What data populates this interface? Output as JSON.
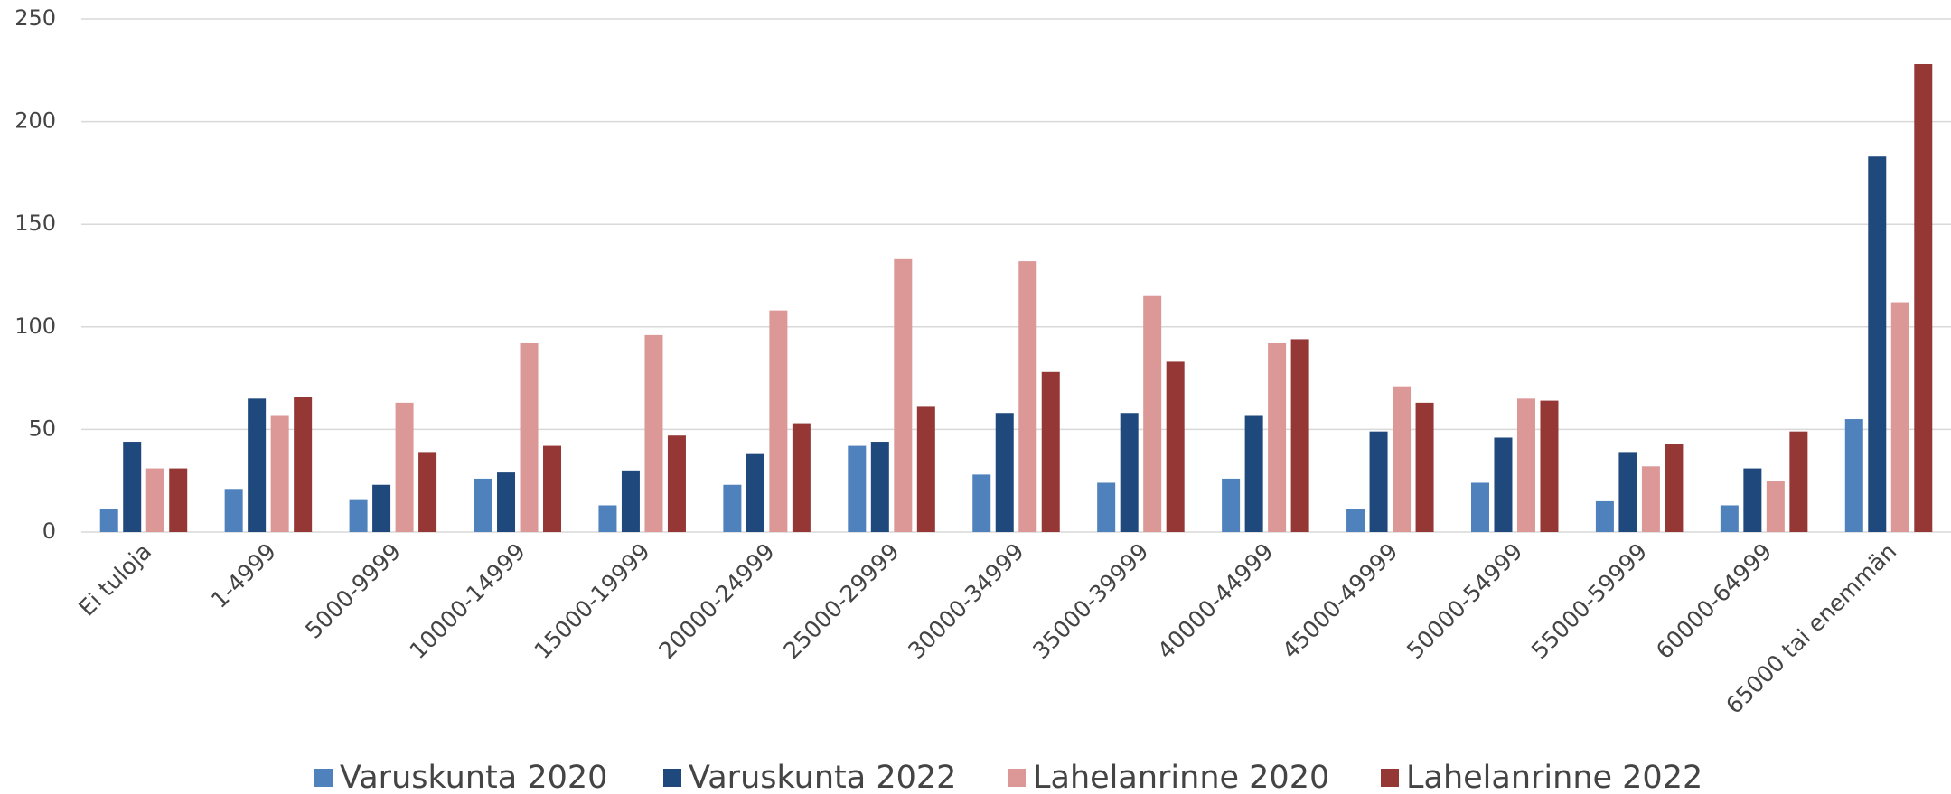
{
  "chart_data": {
    "type": "bar",
    "categories": [
      "Ei tuloja",
      "1-4999",
      "5000-9999",
      "10000-14999",
      "15000-19999",
      "20000-24999",
      "25000-29999",
      "30000-34999",
      "35000-39999",
      "40000-44999",
      "45000-49999",
      "50000-54999",
      "55000-59999",
      "60000-64999",
      "65000 tai enemmän"
    ],
    "series": [
      {
        "name": "Varuskunta 2020",
        "color": "#4f81bd",
        "values": [
          11,
          21,
          16,
          26,
          13,
          23,
          42,
          28,
          24,
          26,
          11,
          24,
          15,
          13,
          55
        ]
      },
      {
        "name": "Varuskunta 2022",
        "color": "#1f497d",
        "values": [
          44,
          65,
          23,
          29,
          30,
          38,
          44,
          58,
          58,
          57,
          49,
          46,
          39,
          31,
          183
        ]
      },
      {
        "name": "Lahelanrinne 2020",
        "color": "#dc9896",
        "values": [
          31,
          57,
          63,
          92,
          96,
          108,
          133,
          132,
          115,
          92,
          71,
          65,
          32,
          25,
          112
        ]
      },
      {
        "name": "Lahelanrinne 2022",
        "color": "#953735",
        "values": [
          31,
          66,
          39,
          42,
          47,
          53,
          61,
          78,
          83,
          94,
          63,
          64,
          43,
          49,
          228
        ]
      }
    ],
    "ylim": [
      0,
      250
    ],
    "yticks": [
      0,
      50,
      100,
      150,
      200,
      250
    ],
    "grid": true,
    "legend": "bottom"
  }
}
